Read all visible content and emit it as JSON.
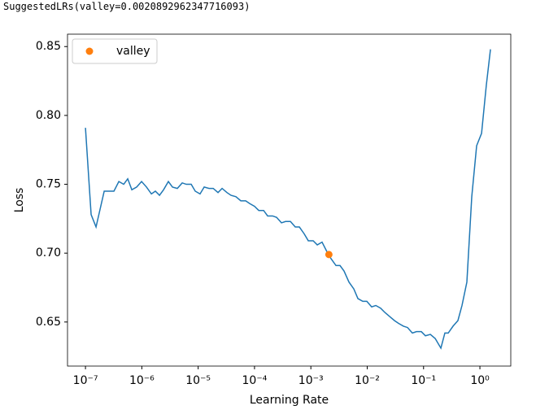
{
  "output_text": "SuggestedLRs(valley=0.0020892962347716093)",
  "chart_data": {
    "type": "line",
    "xlabel": "Learning Rate",
    "ylabel": "Loss",
    "xscale": "log",
    "xlim": [
      4.8e-08,
      3.53
    ],
    "ylim": [
      0.618,
      0.859
    ],
    "xticks": [
      {
        "value": 1e-07,
        "label": "10⁻⁷"
      },
      {
        "value": 1e-06,
        "label": "10⁻⁶"
      },
      {
        "value": 1e-05,
        "label": "10⁻⁵"
      },
      {
        "value": 0.0001,
        "label": "10⁻⁴"
      },
      {
        "value": 0.001,
        "label": "10⁻³"
      },
      {
        "value": 0.01,
        "label": "10⁻²"
      },
      {
        "value": 0.1,
        "label": "10⁻¹"
      },
      {
        "value": 1,
        "label": "10⁰"
      }
    ],
    "yticks": [
      0.65,
      {
        "value": 0.7,
        "label": "0.70"
      },
      0.75,
      {
        "value": 0.8,
        "label": "0.80"
      },
      0.85
    ],
    "legend": "upper left",
    "series": [
      {
        "color": "#1f77b4",
        "x": [
          1e-07,
          1.26e-07,
          1.54e-07,
          1.82e-07,
          2.15e-07,
          2.62e-07,
          3.2e-07,
          3.91e-07,
          4.77e-07,
          5.62e-07,
          6.65e-07,
          8.11e-07,
          9.9e-07,
          1.21e-06,
          1.48e-06,
          1.74e-06,
          2.06e-06,
          2.43e-06,
          2.96e-06,
          3.5e-06,
          4.27e-06,
          5.21e-06,
          6.16e-06,
          7.52e-06,
          8.87e-06,
          1.08e-05,
          1.28e-05,
          1.56e-05,
          1.85e-05,
          2.25e-05,
          2.66e-05,
          3.24e-05,
          3.83e-05,
          4.68e-05,
          5.71e-05,
          6.97e-05,
          8.22e-05,
          0.0001,
          0.000119,
          0.000145,
          0.000171,
          0.000209,
          0.000246,
          0.000301,
          0.000355,
          0.000434,
          0.000529,
          0.000625,
          0.000762,
          0.0009,
          0.0011,
          0.0013,
          0.00158,
          0.00193,
          0.00228,
          0.00279,
          0.00329,
          0.00388,
          0.00474,
          0.00579,
          0.00684,
          0.00834,
          0.00984,
          0.012,
          0.0142,
          0.0173,
          0.0205,
          0.025,
          0.0305,
          0.036,
          0.0439,
          0.0519,
          0.0633,
          0.0748,
          0.0912,
          0.108,
          0.132,
          0.161,
          0.203,
          0.239,
          0.274,
          0.334,
          0.407,
          0.481,
          0.587,
          0.717,
          0.875,
          1.07,
          1.3,
          1.54
        ],
        "values": [
          0.791,
          0.728,
          0.719,
          0.732,
          0.745,
          0.745,
          0.745,
          0.752,
          0.75,
          0.754,
          0.746,
          0.748,
          0.752,
          0.748,
          0.743,
          0.745,
          0.742,
          0.746,
          0.752,
          0.748,
          0.747,
          0.751,
          0.75,
          0.75,
          0.745,
          0.743,
          0.748,
          0.747,
          0.747,
          0.744,
          0.747,
          0.744,
          0.742,
          0.741,
          0.738,
          0.738,
          0.736,
          0.734,
          0.731,
          0.731,
          0.727,
          0.727,
          0.726,
          0.722,
          0.723,
          0.723,
          0.719,
          0.719,
          0.714,
          0.709,
          0.709,
          0.706,
          0.708,
          0.701,
          0.696,
          0.691,
          0.691,
          0.687,
          0.679,
          0.674,
          0.667,
          0.665,
          0.665,
          0.661,
          0.662,
          0.66,
          0.657,
          0.654,
          0.651,
          0.649,
          0.647,
          0.646,
          0.642,
          0.643,
          0.643,
          0.64,
          0.641,
          0.638,
          0.631,
          0.642,
          0.642,
          0.647,
          0.651,
          0.662,
          0.679,
          0.741,
          0.778,
          0.787,
          0.822,
          0.848
        ]
      },
      {
        "name": "valley",
        "type": "scatter",
        "color": "#ff7f0e",
        "x": [
          0.0020892962347716093
        ],
        "values": [
          0.699
        ]
      }
    ]
  }
}
